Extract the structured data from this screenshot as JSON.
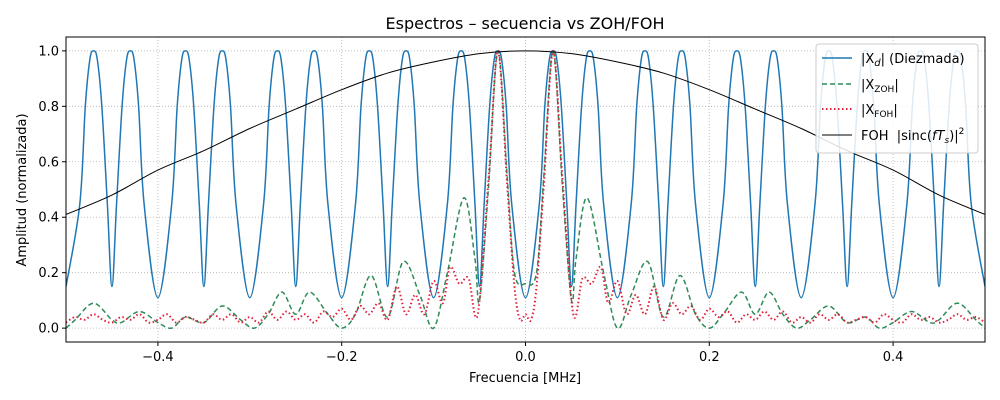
{
  "chart_data": {
    "type": "line",
    "title": "Espectros – secuencia vs ZOH/FOH",
    "xlabel": "Frecuencia [MHz]",
    "ylabel": "Amplitud (normalizada)",
    "xlim": [
      -0.5,
      0.5
    ],
    "ylim": [
      -0.05,
      1.05
    ],
    "xticks": [
      -0.4,
      -0.2,
      0.0,
      0.2,
      0.4
    ],
    "xtick_labels": [
      "−0.4",
      "−0.2",
      "0.0",
      "0.2",
      "0.4"
    ],
    "yticks": [
      0.0,
      0.2,
      0.4,
      0.6,
      0.8,
      1.0
    ],
    "ytick_labels": [
      "0.0",
      "0.2",
      "0.4",
      "0.6",
      "0.8",
      "1.0"
    ],
    "grid": true,
    "legend_position": "upper right",
    "series": [
      {
        "name": "|X_d| (Diezmada)",
        "legend_main": "|X",
        "legend_sub": "d",
        "legend_rest": "| (Diezmada)",
        "color": "#1f77b4",
        "style": "solid",
        "peaks_x": [
          -0.47,
          -0.43,
          -0.37,
          -0.33,
          -0.27,
          -0.23,
          -0.17,
          -0.13,
          -0.07,
          -0.03,
          0.03,
          0.07,
          0.13,
          0.17,
          0.23,
          0.27,
          0.33,
          0.37,
          0.43,
          0.47
        ],
        "peak_value": 1.0,
        "min_outer": 0.11,
        "min_inner": 0.15,
        "edge_value": 0.15
      },
      {
        "name": "|X_ZOH|",
        "legend_main": "|X",
        "legend_sub": "ZOH",
        "legend_rest": "|",
        "color": "#2e8b57",
        "style": "dashed",
        "points": [
          [
            -0.5,
            0.0
          ],
          [
            -0.49,
            0.03
          ],
          [
            -0.47,
            0.09
          ],
          [
            -0.45,
            0.03
          ],
          [
            -0.44,
            0.02
          ],
          [
            -0.42,
            0.06
          ],
          [
            -0.4,
            0.02
          ],
          [
            -0.385,
            0.0
          ],
          [
            -0.37,
            0.04
          ],
          [
            -0.35,
            0.02
          ],
          [
            -0.33,
            0.08
          ],
          [
            -0.31,
            0.03
          ],
          [
            -0.295,
            0.0
          ],
          [
            -0.28,
            0.05
          ],
          [
            -0.265,
            0.13
          ],
          [
            -0.25,
            0.05
          ],
          [
            -0.235,
            0.13
          ],
          [
            -0.215,
            0.05
          ],
          [
            -0.2,
            0.0
          ],
          [
            -0.185,
            0.05
          ],
          [
            -0.168,
            0.19
          ],
          [
            -0.15,
            0.04
          ],
          [
            -0.133,
            0.24
          ],
          [
            -0.115,
            0.12
          ],
          [
            -0.1,
            0.0
          ],
          [
            -0.085,
            0.2
          ],
          [
            -0.067,
            0.47
          ],
          [
            -0.055,
            0.25
          ],
          [
            -0.05,
            0.1
          ],
          [
            -0.04,
            0.52
          ],
          [
            -0.03,
            1.0
          ],
          [
            -0.02,
            0.55
          ],
          [
            -0.012,
            0.2
          ],
          [
            0.0,
            0.16
          ],
          [
            0.012,
            0.2
          ],
          [
            0.02,
            0.55
          ],
          [
            0.03,
            1.0
          ],
          [
            0.04,
            0.52
          ],
          [
            0.05,
            0.1
          ],
          [
            0.055,
            0.25
          ],
          [
            0.067,
            0.47
          ],
          [
            0.085,
            0.2
          ],
          [
            0.1,
            0.0
          ],
          [
            0.115,
            0.12
          ],
          [
            0.133,
            0.24
          ],
          [
            0.15,
            0.04
          ],
          [
            0.168,
            0.19
          ],
          [
            0.185,
            0.05
          ],
          [
            0.2,
            0.0
          ],
          [
            0.215,
            0.05
          ],
          [
            0.235,
            0.13
          ],
          [
            0.25,
            0.05
          ],
          [
            0.265,
            0.13
          ],
          [
            0.28,
            0.05
          ],
          [
            0.295,
            0.0
          ],
          [
            0.31,
            0.03
          ],
          [
            0.33,
            0.08
          ],
          [
            0.35,
            0.02
          ],
          [
            0.37,
            0.04
          ],
          [
            0.385,
            0.0
          ],
          [
            0.4,
            0.02
          ],
          [
            0.42,
            0.06
          ],
          [
            0.44,
            0.02
          ],
          [
            0.45,
            0.03
          ],
          [
            0.47,
            0.09
          ],
          [
            0.49,
            0.03
          ],
          [
            0.5,
            0.0
          ]
        ]
      },
      {
        "name": "|X_FOH|",
        "legend_main": "|X",
        "legend_sub": "FOH",
        "legend_rest": "|",
        "color": "#e0203c",
        "style": "dotted",
        "points": [
          [
            -0.5,
            0.02
          ],
          [
            -0.49,
            0.04
          ],
          [
            -0.48,
            0.03
          ],
          [
            -0.47,
            0.05
          ],
          [
            -0.46,
            0.03
          ],
          [
            -0.45,
            0.02
          ],
          [
            -0.44,
            0.04
          ],
          [
            -0.43,
            0.03
          ],
          [
            -0.42,
            0.05
          ],
          [
            -0.41,
            0.02
          ],
          [
            -0.4,
            0.03
          ],
          [
            -0.39,
            0.05
          ],
          [
            -0.38,
            0.02
          ],
          [
            -0.37,
            0.04
          ],
          [
            -0.36,
            0.03
          ],
          [
            -0.35,
            0.02
          ],
          [
            -0.34,
            0.05
          ],
          [
            -0.33,
            0.03
          ],
          [
            -0.32,
            0.05
          ],
          [
            -0.31,
            0.02
          ],
          [
            -0.3,
            0.04
          ],
          [
            -0.29,
            0.02
          ],
          [
            -0.28,
            0.06
          ],
          [
            -0.27,
            0.03
          ],
          [
            -0.26,
            0.06
          ],
          [
            -0.25,
            0.03
          ],
          [
            -0.24,
            0.05
          ],
          [
            -0.23,
            0.02
          ],
          [
            -0.22,
            0.06
          ],
          [
            -0.21,
            0.04
          ],
          [
            -0.2,
            0.07
          ],
          [
            -0.19,
            0.03
          ],
          [
            -0.18,
            0.08
          ],
          [
            -0.17,
            0.05
          ],
          [
            -0.16,
            0.09
          ],
          [
            -0.15,
            0.03
          ],
          [
            -0.14,
            0.15
          ],
          [
            -0.13,
            0.05
          ],
          [
            -0.12,
            0.12
          ],
          [
            -0.11,
            0.05
          ],
          [
            -0.1,
            0.17
          ],
          [
            -0.09,
            0.09
          ],
          [
            -0.082,
            0.22
          ],
          [
            -0.072,
            0.16
          ],
          [
            -0.062,
            0.18
          ],
          [
            -0.052,
            0.05
          ],
          [
            -0.04,
            0.55
          ],
          [
            -0.03,
            1.0
          ],
          [
            -0.02,
            0.52
          ],
          [
            -0.012,
            0.15
          ],
          [
            -0.006,
            0.03
          ],
          [
            0.0,
            0.05
          ],
          [
            0.006,
            0.03
          ],
          [
            0.012,
            0.15
          ],
          [
            0.02,
            0.52
          ],
          [
            0.03,
            1.0
          ],
          [
            0.04,
            0.55
          ],
          [
            0.052,
            0.05
          ],
          [
            0.062,
            0.18
          ],
          [
            0.072,
            0.16
          ],
          [
            0.082,
            0.22
          ],
          [
            0.09,
            0.09
          ],
          [
            0.1,
            0.17
          ],
          [
            0.11,
            0.05
          ],
          [
            0.12,
            0.12
          ],
          [
            0.13,
            0.05
          ],
          [
            0.14,
            0.15
          ],
          [
            0.15,
            0.03
          ],
          [
            0.16,
            0.09
          ],
          [
            0.17,
            0.05
          ],
          [
            0.18,
            0.08
          ],
          [
            0.19,
            0.03
          ],
          [
            0.2,
            0.07
          ],
          [
            0.21,
            0.04
          ],
          [
            0.22,
            0.06
          ],
          [
            0.23,
            0.02
          ],
          [
            0.24,
            0.05
          ],
          [
            0.25,
            0.03
          ],
          [
            0.26,
            0.06
          ],
          [
            0.27,
            0.03
          ],
          [
            0.28,
            0.06
          ],
          [
            0.29,
            0.02
          ],
          [
            0.3,
            0.04
          ],
          [
            0.31,
            0.02
          ],
          [
            0.32,
            0.05
          ],
          [
            0.33,
            0.03
          ],
          [
            0.34,
            0.05
          ],
          [
            0.35,
            0.02
          ],
          [
            0.36,
            0.03
          ],
          [
            0.37,
            0.04
          ],
          [
            0.38,
            0.02
          ],
          [
            0.39,
            0.05
          ],
          [
            0.4,
            0.03
          ],
          [
            0.41,
            0.02
          ],
          [
            0.42,
            0.05
          ],
          [
            0.43,
            0.03
          ],
          [
            0.44,
            0.04
          ],
          [
            0.45,
            0.02
          ],
          [
            0.46,
            0.03
          ],
          [
            0.47,
            0.05
          ],
          [
            0.48,
            0.03
          ],
          [
            0.49,
            0.04
          ],
          [
            0.5,
            0.02
          ]
        ]
      },
      {
        "name": "FOH |sinc(fT_s)|^2",
        "legend_main": "FOH  |sinc(",
        "legend_f": "fT",
        "legend_sub": "s",
        "legend_rest": ")|",
        "legend_sup": "2",
        "color": "#000000",
        "style": "solid",
        "points": [
          [
            -0.5,
            0.41
          ],
          [
            -0.45,
            0.48
          ],
          [
            -0.4,
            0.57
          ],
          [
            -0.35,
            0.64
          ],
          [
            -0.3,
            0.72
          ],
          [
            -0.25,
            0.79
          ],
          [
            -0.2,
            0.86
          ],
          [
            -0.15,
            0.92
          ],
          [
            -0.1,
            0.96
          ],
          [
            -0.05,
            0.99
          ],
          [
            0.0,
            1.0
          ],
          [
            0.05,
            0.99
          ],
          [
            0.1,
            0.96
          ],
          [
            0.15,
            0.92
          ],
          [
            0.2,
            0.86
          ],
          [
            0.25,
            0.79
          ],
          [
            0.3,
            0.72
          ],
          [
            0.35,
            0.64
          ],
          [
            0.4,
            0.57
          ],
          [
            0.45,
            0.48
          ],
          [
            0.5,
            0.41
          ]
        ]
      }
    ]
  }
}
